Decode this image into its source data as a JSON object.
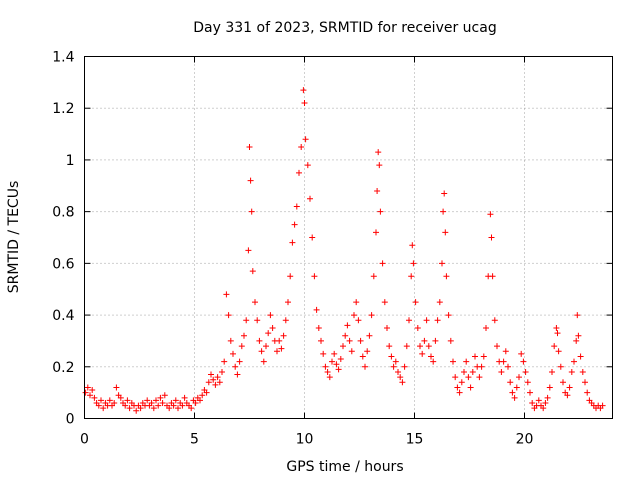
{
  "chart_data": {
    "type": "scatter",
    "title": "Day 331 of 2023, SRMTID for receiver ucag",
    "xlabel": "GPS time / hours",
    "ylabel": "SRMTID / TECUs",
    "xlim": [
      0,
      24
    ],
    "ylim": [
      0,
      1.4
    ],
    "xticks": [
      0,
      5,
      10,
      15,
      20
    ],
    "xtick_labels": [
      "0",
      "5",
      "10",
      "15",
      "20"
    ],
    "yticks": [
      0,
      0.2,
      0.4,
      0.6,
      0.8,
      1.0,
      1.2,
      1.4
    ],
    "ytick_labels": [
      "0",
      "0.2",
      "0.4",
      "0.6",
      "0.8",
      "1",
      "1.2",
      "1.4"
    ],
    "grid": true,
    "marker": "+",
    "color": "#ff0000",
    "series": [
      {
        "name": "SRMTID",
        "points": [
          [
            0.05,
            0.1
          ],
          [
            0.15,
            0.12
          ],
          [
            0.25,
            0.09
          ],
          [
            0.35,
            0.11
          ],
          [
            0.45,
            0.08
          ],
          [
            0.55,
            0.06
          ],
          [
            0.65,
            0.05
          ],
          [
            0.75,
            0.07
          ],
          [
            0.85,
            0.04
          ],
          [
            0.95,
            0.06
          ],
          [
            1.05,
            0.05
          ],
          [
            1.15,
            0.07
          ],
          [
            1.25,
            0.05
          ],
          [
            1.35,
            0.06
          ],
          [
            1.45,
            0.12
          ],
          [
            1.55,
            0.09
          ],
          [
            1.65,
            0.08
          ],
          [
            1.75,
            0.06
          ],
          [
            1.85,
            0.05
          ],
          [
            1.95,
            0.07
          ],
          [
            2.05,
            0.04
          ],
          [
            2.15,
            0.06
          ],
          [
            2.25,
            0.05
          ],
          [
            2.35,
            0.03
          ],
          [
            2.45,
            0.05
          ],
          [
            2.55,
            0.04
          ],
          [
            2.65,
            0.06
          ],
          [
            2.75,
            0.05
          ],
          [
            2.85,
            0.07
          ],
          [
            2.95,
            0.05
          ],
          [
            3.05,
            0.06
          ],
          [
            3.15,
            0.04
          ],
          [
            3.25,
            0.07
          ],
          [
            3.35,
            0.05
          ],
          [
            3.45,
            0.08
          ],
          [
            3.55,
            0.06
          ],
          [
            3.65,
            0.09
          ],
          [
            3.75,
            0.05
          ],
          [
            3.85,
            0.04
          ],
          [
            3.95,
            0.06
          ],
          [
            4.05,
            0.05
          ],
          [
            4.15,
            0.07
          ],
          [
            4.25,
            0.04
          ],
          [
            4.35,
            0.06
          ],
          [
            4.45,
            0.05
          ],
          [
            4.55,
            0.08
          ],
          [
            4.65,
            0.06
          ],
          [
            4.75,
            0.05
          ],
          [
            4.85,
            0.04
          ],
          [
            4.95,
            0.07
          ],
          [
            5.05,
            0.06
          ],
          [
            5.15,
            0.08
          ],
          [
            5.25,
            0.07
          ],
          [
            5.35,
            0.09
          ],
          [
            5.45,
            0.11
          ],
          [
            5.55,
            0.1
          ],
          [
            5.65,
            0.14
          ],
          [
            5.75,
            0.17
          ],
          [
            5.85,
            0.15
          ],
          [
            5.95,
            0.13
          ],
          [
            6.05,
            0.16
          ],
          [
            6.15,
            0.14
          ],
          [
            6.25,
            0.18
          ],
          [
            6.35,
            0.22
          ],
          [
            6.45,
            0.48
          ],
          [
            6.55,
            0.4
          ],
          [
            6.65,
            0.3
          ],
          [
            6.75,
            0.25
          ],
          [
            6.85,
            0.2
          ],
          [
            6.95,
            0.17
          ],
          [
            7.05,
            0.22
          ],
          [
            7.15,
            0.28
          ],
          [
            7.25,
            0.32
          ],
          [
            7.35,
            0.38
          ],
          [
            7.45,
            0.65
          ],
          [
            7.5,
            1.05
          ],
          [
            7.55,
            0.92
          ],
          [
            7.6,
            0.8
          ],
          [
            7.65,
            0.57
          ],
          [
            7.75,
            0.45
          ],
          [
            7.85,
            0.38
          ],
          [
            7.95,
            0.3
          ],
          [
            8.05,
            0.26
          ],
          [
            8.15,
            0.22
          ],
          [
            8.25,
            0.28
          ],
          [
            8.35,
            0.33
          ],
          [
            8.45,
            0.4
          ],
          [
            8.55,
            0.35
          ],
          [
            8.65,
            0.3
          ],
          [
            8.75,
            0.26
          ],
          [
            8.85,
            0.3
          ],
          [
            8.95,
            0.27
          ],
          [
            9.05,
            0.32
          ],
          [
            9.15,
            0.38
          ],
          [
            9.25,
            0.45
          ],
          [
            9.35,
            0.55
          ],
          [
            9.45,
            0.68
          ],
          [
            9.55,
            0.75
          ],
          [
            9.65,
            0.82
          ],
          [
            9.75,
            0.95
          ],
          [
            9.85,
            1.05
          ],
          [
            9.95,
            1.27
          ],
          [
            10.0,
            1.22
          ],
          [
            10.05,
            1.08
          ],
          [
            10.15,
            0.98
          ],
          [
            10.25,
            0.85
          ],
          [
            10.35,
            0.7
          ],
          [
            10.45,
            0.55
          ],
          [
            10.55,
            0.42
          ],
          [
            10.65,
            0.35
          ],
          [
            10.75,
            0.3
          ],
          [
            10.85,
            0.25
          ],
          [
            10.95,
            0.2
          ],
          [
            11.05,
            0.18
          ],
          [
            11.15,
            0.16
          ],
          [
            11.25,
            0.22
          ],
          [
            11.35,
            0.25
          ],
          [
            11.45,
            0.21
          ],
          [
            11.55,
            0.19
          ],
          [
            11.65,
            0.23
          ],
          [
            11.75,
            0.28
          ],
          [
            11.85,
            0.32
          ],
          [
            11.95,
            0.36
          ],
          [
            12.05,
            0.3
          ],
          [
            12.15,
            0.26
          ],
          [
            12.25,
            0.4
          ],
          [
            12.35,
            0.45
          ],
          [
            12.45,
            0.38
          ],
          [
            12.55,
            0.3
          ],
          [
            12.65,
            0.24
          ],
          [
            12.75,
            0.2
          ],
          [
            12.85,
            0.26
          ],
          [
            12.95,
            0.32
          ],
          [
            13.05,
            0.4
          ],
          [
            13.15,
            0.55
          ],
          [
            13.25,
            0.72
          ],
          [
            13.3,
            0.88
          ],
          [
            13.35,
            1.03
          ],
          [
            13.4,
            0.98
          ],
          [
            13.45,
            0.8
          ],
          [
            13.55,
            0.6
          ],
          [
            13.65,
            0.45
          ],
          [
            13.75,
            0.35
          ],
          [
            13.85,
            0.28
          ],
          [
            13.95,
            0.24
          ],
          [
            14.05,
            0.2
          ],
          [
            14.15,
            0.22
          ],
          [
            14.25,
            0.18
          ],
          [
            14.35,
            0.16
          ],
          [
            14.45,
            0.14
          ],
          [
            14.55,
            0.2
          ],
          [
            14.65,
            0.28
          ],
          [
            14.75,
            0.38
          ],
          [
            14.85,
            0.55
          ],
          [
            14.9,
            0.67
          ],
          [
            14.95,
            0.6
          ],
          [
            15.05,
            0.45
          ],
          [
            15.15,
            0.35
          ],
          [
            15.25,
            0.28
          ],
          [
            15.35,
            0.25
          ],
          [
            15.45,
            0.3
          ],
          [
            15.55,
            0.38
          ],
          [
            15.65,
            0.28
          ],
          [
            15.75,
            0.24
          ],
          [
            15.85,
            0.22
          ],
          [
            15.95,
            0.3
          ],
          [
            16.05,
            0.38
          ],
          [
            16.15,
            0.45
          ],
          [
            16.25,
            0.6
          ],
          [
            16.3,
            0.8
          ],
          [
            16.35,
            0.87
          ],
          [
            16.4,
            0.72
          ],
          [
            16.45,
            0.55
          ],
          [
            16.55,
            0.4
          ],
          [
            16.65,
            0.3
          ],
          [
            16.75,
            0.22
          ],
          [
            16.85,
            0.16
          ],
          [
            16.95,
            0.12
          ],
          [
            17.05,
            0.1
          ],
          [
            17.15,
            0.14
          ],
          [
            17.25,
            0.18
          ],
          [
            17.35,
            0.22
          ],
          [
            17.45,
            0.16
          ],
          [
            17.55,
            0.12
          ],
          [
            17.65,
            0.18
          ],
          [
            17.75,
            0.24
          ],
          [
            17.85,
            0.2
          ],
          [
            17.95,
            0.16
          ],
          [
            18.05,
            0.2
          ],
          [
            18.15,
            0.24
          ],
          [
            18.25,
            0.35
          ],
          [
            18.35,
            0.55
          ],
          [
            18.45,
            0.79
          ],
          [
            18.5,
            0.7
          ],
          [
            18.55,
            0.55
          ],
          [
            18.65,
            0.38
          ],
          [
            18.75,
            0.28
          ],
          [
            18.85,
            0.22
          ],
          [
            18.95,
            0.18
          ],
          [
            19.05,
            0.22
          ],
          [
            19.15,
            0.26
          ],
          [
            19.25,
            0.2
          ],
          [
            19.35,
            0.14
          ],
          [
            19.45,
            0.1
          ],
          [
            19.55,
            0.08
          ],
          [
            19.65,
            0.12
          ],
          [
            19.75,
            0.16
          ],
          [
            19.85,
            0.25
          ],
          [
            19.95,
            0.22
          ],
          [
            20.05,
            0.18
          ],
          [
            20.15,
            0.14
          ],
          [
            20.25,
            0.1
          ],
          [
            20.35,
            0.06
          ],
          [
            20.45,
            0.04
          ],
          [
            20.55,
            0.05
          ],
          [
            20.65,
            0.07
          ],
          [
            20.75,
            0.05
          ],
          [
            20.85,
            0.04
          ],
          [
            20.95,
            0.06
          ],
          [
            21.05,
            0.08
          ],
          [
            21.15,
            0.12
          ],
          [
            21.25,
            0.18
          ],
          [
            21.35,
            0.28
          ],
          [
            21.45,
            0.35
          ],
          [
            21.5,
            0.33
          ],
          [
            21.55,
            0.26
          ],
          [
            21.65,
            0.2
          ],
          [
            21.75,
            0.14
          ],
          [
            21.85,
            0.1
          ],
          [
            21.95,
            0.09
          ],
          [
            22.05,
            0.12
          ],
          [
            22.15,
            0.18
          ],
          [
            22.25,
            0.22
          ],
          [
            22.35,
            0.3
          ],
          [
            22.4,
            0.4
          ],
          [
            22.45,
            0.32
          ],
          [
            22.55,
            0.24
          ],
          [
            22.65,
            0.18
          ],
          [
            22.75,
            0.14
          ],
          [
            22.85,
            0.1
          ],
          [
            22.95,
            0.07
          ],
          [
            23.05,
            0.06
          ],
          [
            23.15,
            0.05
          ],
          [
            23.25,
            0.04
          ],
          [
            23.35,
            0.05
          ],
          [
            23.45,
            0.04
          ],
          [
            23.55,
            0.05
          ]
        ]
      }
    ]
  }
}
